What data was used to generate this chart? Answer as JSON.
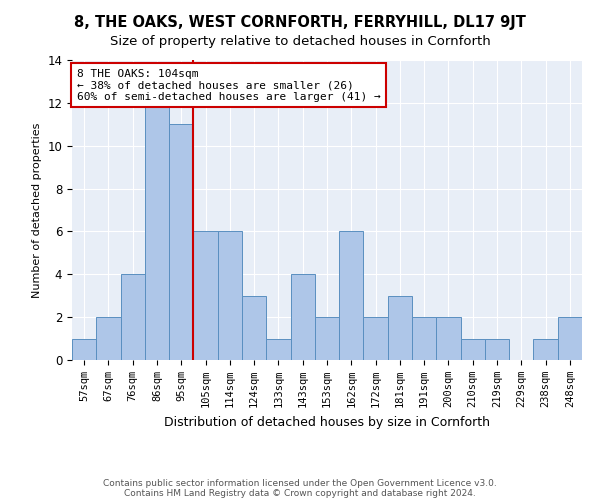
{
  "title": "8, THE OAKS, WEST CORNFORTH, FERRYHILL, DL17 9JT",
  "subtitle": "Size of property relative to detached houses in Cornforth",
  "xlabel": "Distribution of detached houses by size in Cornforth",
  "ylabel": "Number of detached properties",
  "bar_labels": [
    "57sqm",
    "67sqm",
    "76sqm",
    "86sqm",
    "95sqm",
    "105sqm",
    "114sqm",
    "124sqm",
    "133sqm",
    "143sqm",
    "153sqm",
    "162sqm",
    "172sqm",
    "181sqm",
    "191sqm",
    "200sqm",
    "210sqm",
    "219sqm",
    "229sqm",
    "238sqm",
    "248sqm"
  ],
  "bar_values": [
    1,
    2,
    4,
    12,
    11,
    6,
    6,
    3,
    1,
    4,
    2,
    6,
    2,
    3,
    2,
    2,
    1,
    1,
    0,
    1,
    2
  ],
  "bar_color": "#aec6e8",
  "bar_edge_color": "#5a8fc0",
  "vline_x": 4.5,
  "vline_color": "#cc0000",
  "annotation_box_color": "#cc0000",
  "annotation_text": "8 THE OAKS: 104sqm\n← 38% of detached houses are smaller (26)\n60% of semi-detached houses are larger (41) →",
  "ylim": [
    0,
    14
  ],
  "yticks": [
    0,
    2,
    4,
    6,
    8,
    10,
    12,
    14
  ],
  "bg_color": "#e8eef7",
  "grid_color": "#ffffff",
  "footnote_line1": "Contains HM Land Registry data © Crown copyright and database right 2024.",
  "footnote_line2": "Contains public sector information licensed under the Open Government Licence v3.0.",
  "title_fontsize": 10.5,
  "subtitle_fontsize": 9.5,
  "xlabel_fontsize": 9,
  "ylabel_fontsize": 8,
  "tick_fontsize": 7.5,
  "annotation_fontsize": 8,
  "footnote_fontsize": 6.5
}
